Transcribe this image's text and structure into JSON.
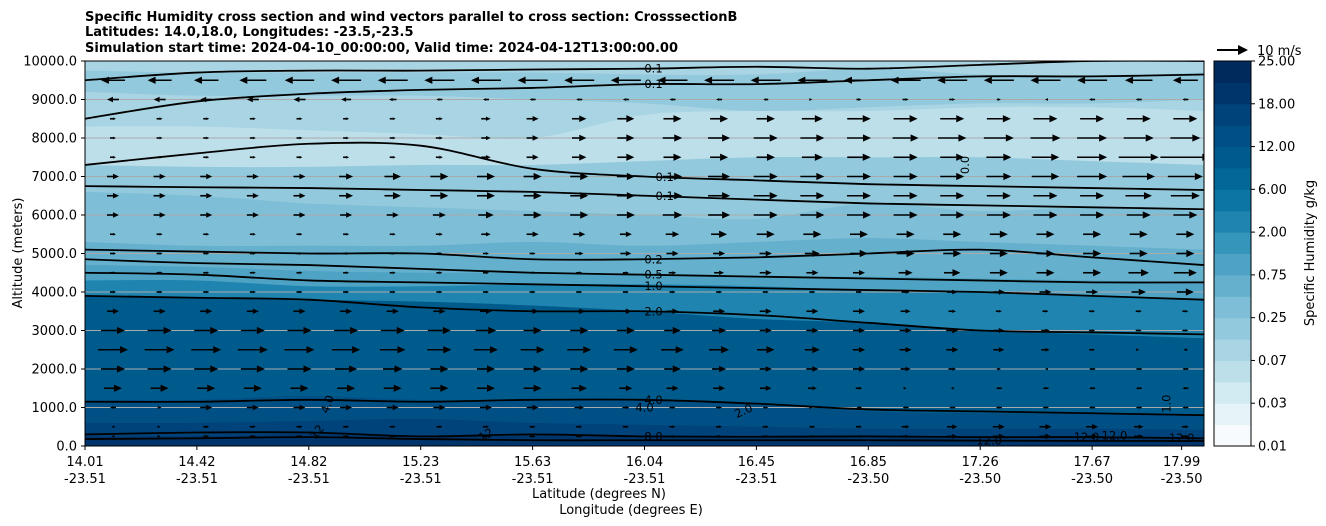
{
  "chart_data": {
    "type": "contour",
    "title_lines": [
      "Specific Humidity cross section and wind vectors parallel to cross section: CrosssectionB",
      "Latitudes: 14.0,18.0, Longitudes: -23.5,-23.5",
      "Simulation start time: 2024-04-10_00:00:00, Valid time: 2024-04-12T13:00:00.00"
    ],
    "xlabel_lat": "Latitude (degrees N)",
    "xlabel_lon": "Longitude (degrees E)",
    "ylabel": "Altitude (meters)",
    "x_range": [
      0,
      10
    ],
    "ylim": [
      0,
      10000
    ],
    "x_ticks": [
      {
        "x": 0,
        "lat": "14.01",
        "lon": "-23.51"
      },
      {
        "x": 1,
        "lat": "14.42",
        "lon": "-23.51"
      },
      {
        "x": 2,
        "lat": "14.82",
        "lon": "-23.51"
      },
      {
        "x": 3,
        "lat": "15.23",
        "lon": "-23.51"
      },
      {
        "x": 4,
        "lat": "15.63",
        "lon": "-23.51"
      },
      {
        "x": 5,
        "lat": "16.04",
        "lon": "-23.51"
      },
      {
        "x": 6,
        "lat": "16.45",
        "lon": "-23.51"
      },
      {
        "x": 7,
        "lat": "16.85",
        "lon": "-23.50"
      },
      {
        "x": 8,
        "lat": "17.26",
        "lon": "-23.50"
      },
      {
        "x": 9,
        "lat": "17.67",
        "lon": "-23.50"
      },
      {
        "x": 9.8,
        "lat": "17.99",
        "lon": "-23.50"
      }
    ],
    "y_ticks": [
      {
        "v": 0,
        "label": "0.0"
      },
      {
        "v": 1000,
        "label": "1000.0"
      },
      {
        "v": 2000,
        "label": "2000.0"
      },
      {
        "v": 3000,
        "label": "3000.0"
      },
      {
        "v": 4000,
        "label": "4000.0"
      },
      {
        "v": 5000,
        "label": "5000.0"
      },
      {
        "v": 6000,
        "label": "6000.0"
      },
      {
        "v": 7000,
        "label": "7000.0"
      },
      {
        "v": 8000,
        "label": "8000.0"
      },
      {
        "v": 9000,
        "label": "9000.0"
      },
      {
        "v": 10000,
        "label": "10000.0"
      }
    ],
    "colorbar": {
      "label": "Specific Humidity g/kg",
      "ticks": [
        "0.01",
        "0.03",
        "0.07",
        "0.25",
        "0.75",
        "2.00",
        "6.00",
        "12.00",
        "18.00",
        "25.00"
      ],
      "colors": [
        "#f7fbfd",
        "#e6f3f8",
        "#d2eaf1",
        "#bddfea",
        "#a8d4e3",
        "#93c9dc",
        "#7ebed6",
        "#65b0cd",
        "#4ea3c4",
        "#3695bb",
        "#1f85b0",
        "#0d75a3",
        "#036897",
        "#005b8d",
        "#004f85",
        "#00427a",
        "#00356b",
        "#002a5c"
      ]
    },
    "field_bands": [
      {
        "top": [
          10000,
          10000,
          10000,
          10000,
          10000,
          10000,
          10000,
          10000,
          10000,
          10000,
          10000
        ],
        "color_index": 4
      },
      {
        "top": [
          9750,
          9700,
          9700,
          9700,
          9700,
          9650,
          9650,
          9800,
          9650,
          9600,
          9700
        ],
        "color_index": 5
      },
      {
        "top": [
          9200,
          9100,
          9100,
          9100,
          9000,
          8900,
          8700,
          8800,
          8900,
          8900,
          9000
        ],
        "color_index": 4
      },
      {
        "top": [
          8300,
          8300,
          8200,
          8100,
          8000,
          8600,
          8700,
          8700,
          8800,
          8800,
          8700
        ],
        "color_index": 3
      },
      {
        "top": [
          7300,
          7250,
          7250,
          7300,
          7300,
          7400,
          7500,
          7500,
          7500,
          7400,
          7300
        ],
        "color_index": 5
      },
      {
        "top": [
          6600,
          6500,
          6300,
          6200,
          6100,
          6000,
          5900,
          6300,
          6100,
          6200,
          6100
        ],
        "color_index": 6
      },
      {
        "top": [
          5300,
          5200,
          5200,
          5200,
          5300,
          5200,
          5300,
          5400,
          5300,
          5200,
          5100
        ],
        "color_index": 7
      },
      {
        "top": [
          4700,
          4650,
          4550,
          4500,
          4500,
          4450,
          4400,
          4400,
          4350,
          4300,
          4250
        ],
        "color_index": 8
      },
      {
        "top": [
          4300,
          4300,
          4150,
          4150,
          4200,
          4200,
          4150,
          4050,
          4000,
          3900,
          3800
        ],
        "color_index": 10
      },
      {
        "top": [
          3900,
          3850,
          3800,
          3750,
          3650,
          3500,
          3300,
          3200,
          3000,
          2900,
          2800
        ],
        "color_index": 13
      },
      {
        "top": [
          1200,
          1200,
          1300,
          1200,
          1200,
          1200,
          1100,
          900,
          850,
          850,
          800
        ],
        "color_index": 14
      },
      {
        "top": [
          600,
          600,
          650,
          700,
          600,
          550,
          500,
          450,
          450,
          450,
          420
        ],
        "color_index": 15
      },
      {
        "top": [
          250,
          250,
          300,
          250,
          260,
          260,
          240,
          240,
          230,
          230,
          220
        ],
        "color_index": 16
      }
    ],
    "contours": [
      {
        "label": "0.1",
        "label_x": 5.0,
        "y": [
          9500,
          9700,
          9750,
          9750,
          9780,
          9800,
          9850,
          9800,
          9900,
          10000,
          10000
        ]
      },
      {
        "label": "0.1",
        "label_x": 5.0,
        "y": [
          8500,
          8950,
          9150,
          9250,
          9300,
          9400,
          9400,
          9500,
          9600,
          9600,
          9650
        ]
      },
      {
        "label": "0.1",
        "label_x": 5.1,
        "y": [
          7300,
          7600,
          7850,
          7800,
          7200,
          7000,
          6900,
          6800,
          6750,
          6700,
          6650
        ]
      },
      {
        "label": "0.1",
        "label_x": 5.1,
        "y": [
          6750,
          6720,
          6700,
          6650,
          6600,
          6500,
          6400,
          6300,
          6250,
          6200,
          6150
        ]
      },
      {
        "label": "0.2",
        "label_x": 5.0,
        "y": [
          5100,
          5050,
          5000,
          5000,
          4850,
          4850,
          4900,
          5000,
          5100,
          4900,
          4700
        ]
      },
      {
        "label": "0.5",
        "label_x": 5.0,
        "y": [
          4850,
          4750,
          4700,
          4600,
          4500,
          4450,
          4400,
          4350,
          4300,
          4250,
          4250
        ]
      },
      {
        "label": "1.0",
        "label_x": 5.0,
        "y": [
          4500,
          4450,
          4300,
          4250,
          4200,
          4150,
          4100,
          4050,
          4000,
          3900,
          3800
        ]
      },
      {
        "label": "2.0",
        "label_x": 5.0,
        "y": [
          3900,
          3850,
          3800,
          3600,
          3500,
          3500,
          3400,
          3200,
          3000,
          2950,
          2900
        ]
      },
      {
        "label": "4.0",
        "label_x": 5.0,
        "y": [
          1150,
          1150,
          1200,
          1150,
          1200,
          1200,
          1100,
          950,
          900,
          850,
          800
        ]
      },
      {
        "label": "8.0",
        "label_x": 5.0,
        "y": [
          300,
          350,
          350,
          250,
          300,
          250,
          240,
          250,
          230,
          230,
          200
        ]
      },
      {
        "label": "12.0",
        "label_x": 8.0,
        "y": [
          180,
          200,
          230,
          180,
          150,
          150,
          150,
          150,
          140,
          130,
          130
        ]
      }
    ],
    "contour_labels_extra": [
      {
        "text": "4.0",
        "x": 2.2,
        "y": 1050,
        "rot": -70
      },
      {
        "text": "12",
        "x": 2.1,
        "y": 300,
        "rot": -50
      },
      {
        "text": "4.0",
        "x": 5.0,
        "y": 900,
        "rot": 0
      },
      {
        "text": "2.0",
        "x": 5.9,
        "y": 820,
        "rot": -25
      },
      {
        "text": "12",
        "x": 3.6,
        "y": 200,
        "rot": -30
      },
      {
        "text": "12.0",
        "x": 8.95,
        "y": 130,
        "rot": 0
      },
      {
        "text": "12.0",
        "x": 9.2,
        "y": 170,
        "rot": 0
      },
      {
        "text": "12.0",
        "x": 9.8,
        "y": 100,
        "rot": 0
      },
      {
        "text": "1.0",
        "x": 9.7,
        "y": 1100,
        "rot": -90
      },
      {
        "text": "0.0",
        "x": 7.9,
        "y": 7300,
        "rot": -90
      }
    ],
    "wind_vectors": {
      "heights": [
        250,
        500,
        1000,
        1500,
        2000,
        2500,
        3000,
        3500,
        4000,
        4500,
        5000,
        5500,
        6000,
        6500,
        7000,
        7500,
        8000,
        8500,
        9000,
        9500
      ],
      "u_profiles": [
        [
          -1,
          1,
          1,
          1,
          1,
          1,
          1,
          1,
          2,
          2,
          1
        ],
        [
          -1,
          1,
          1,
          1,
          1,
          1,
          1,
          1,
          2,
          2,
          1
        ],
        [
          -2,
          2,
          2,
          2,
          2,
          1,
          1,
          -1,
          -1,
          -1,
          -1
        ],
        [
          3,
          3,
          3,
          3,
          3,
          2,
          2,
          1,
          -1,
          -1,
          -1
        ],
        [
          4,
          4,
          4,
          3,
          3,
          3,
          2,
          2,
          1,
          -1,
          -1
        ],
        [
          5,
          5,
          5,
          4,
          4,
          4,
          3,
          2,
          2,
          1,
          -1
        ],
        [
          4,
          4,
          4,
          4,
          3,
          3,
          2,
          2,
          2,
          1,
          1
        ],
        [
          2,
          2,
          2,
          2,
          2,
          2,
          2,
          2,
          1,
          1,
          1
        ],
        [
          1,
          1,
          1,
          1,
          1,
          1,
          1,
          1,
          2,
          2,
          3
        ],
        [
          1,
          1,
          1,
          1,
          1,
          1,
          2,
          2,
          3,
          3,
          4
        ],
        [
          1,
          1,
          1,
          1,
          1,
          2,
          2,
          3,
          3,
          3,
          3
        ],
        [
          1,
          1,
          1,
          1,
          2,
          2,
          3,
          3,
          3,
          3,
          3
        ],
        [
          2,
          2,
          2,
          2,
          3,
          3,
          4,
          4,
          4,
          4,
          4
        ],
        [
          2,
          2,
          2,
          3,
          3,
          3,
          4,
          4,
          4,
          4,
          5
        ],
        [
          2,
          2,
          2,
          3,
          3,
          3,
          4,
          4,
          4,
          5,
          6
        ],
        [
          1,
          1,
          1,
          1,
          2,
          3,
          3,
          4,
          4,
          5,
          9
        ],
        [
          1,
          1,
          1,
          1,
          2,
          3,
          4,
          4,
          5,
          5,
          5
        ],
        [
          1,
          1,
          1,
          1,
          2,
          3,
          3,
          4,
          4,
          4,
          4
        ],
        [
          -2,
          -2,
          -2,
          -1,
          -1,
          -1,
          -1,
          1,
          1,
          -1,
          -1
        ],
        [
          -4,
          -4,
          -5,
          -5,
          -5,
          -5,
          -5,
          -5,
          -5,
          -5,
          -4
        ]
      ]
    },
    "quiver_key": "10 m/s"
  }
}
